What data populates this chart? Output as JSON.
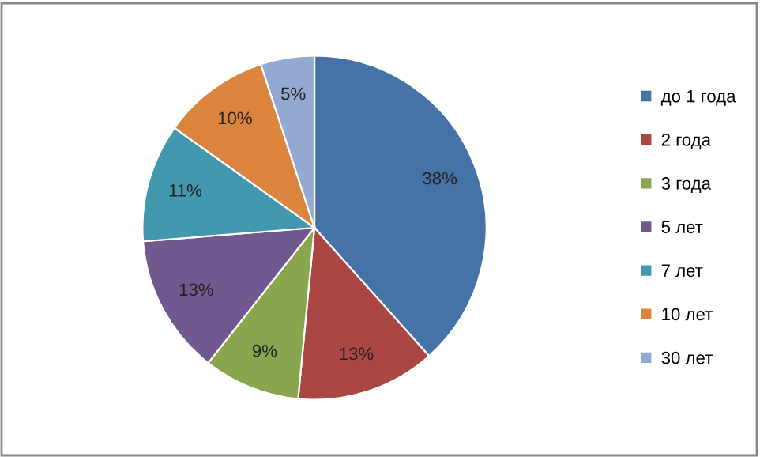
{
  "chart_data": {
    "type": "pie",
    "categories": [
      "до 1 года",
      "2 года",
      "3 года",
      "5 лет",
      "7 лет",
      "10 лет",
      "30 лет"
    ],
    "values": [
      38,
      13,
      9,
      13,
      11,
      10,
      5
    ],
    "value_labels": [
      "38%",
      "13%",
      "9%",
      "13%",
      "11%",
      "10%",
      "5%"
    ],
    "colors": [
      "#4572a7",
      "#aa4643",
      "#89a54e",
      "#71588f",
      "#4198af",
      "#db843d",
      "#93a9cf"
    ],
    "legend": "right"
  }
}
